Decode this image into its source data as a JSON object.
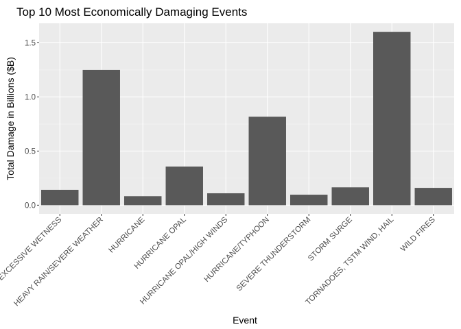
{
  "chart_data": {
    "type": "bar",
    "title": "Top 10 Most Economically Damaging Events",
    "xlabel": "Event",
    "ylabel": "Total Damage in Billions ($B)",
    "categories": [
      "EXCESSIVE WETNESS",
      "HEAVY RAIN/SEVERE WEATHER",
      "HURRICANE",
      "HURRICANE OPAL",
      "HURRICANE OPAL/HIGH WINDS",
      "HURRICANE/TYPHOON",
      "SEVERE THUNDERSTORM",
      "STORM SURGE",
      "TORNADOES, TSTM WIND, HAIL",
      "WILD FIRES"
    ],
    "values": [
      0.142,
      1.25,
      0.083,
      0.357,
      0.11,
      0.817,
      0.097,
      0.165,
      1.6,
      0.16
    ],
    "yticks": [
      0.0,
      0.5,
      1.0,
      1.5
    ],
    "ytick_labels": [
      "0.0",
      "0.5",
      "1.0",
      "1.5"
    ],
    "ylim": [
      -0.08,
      1.68
    ],
    "grid": true,
    "colors": {
      "panel": "#ebebeb",
      "grid_major": "#ffffff",
      "bar": "#595959",
      "tick_text": "#4d4d4d",
      "tick_mark": "#333333"
    }
  }
}
